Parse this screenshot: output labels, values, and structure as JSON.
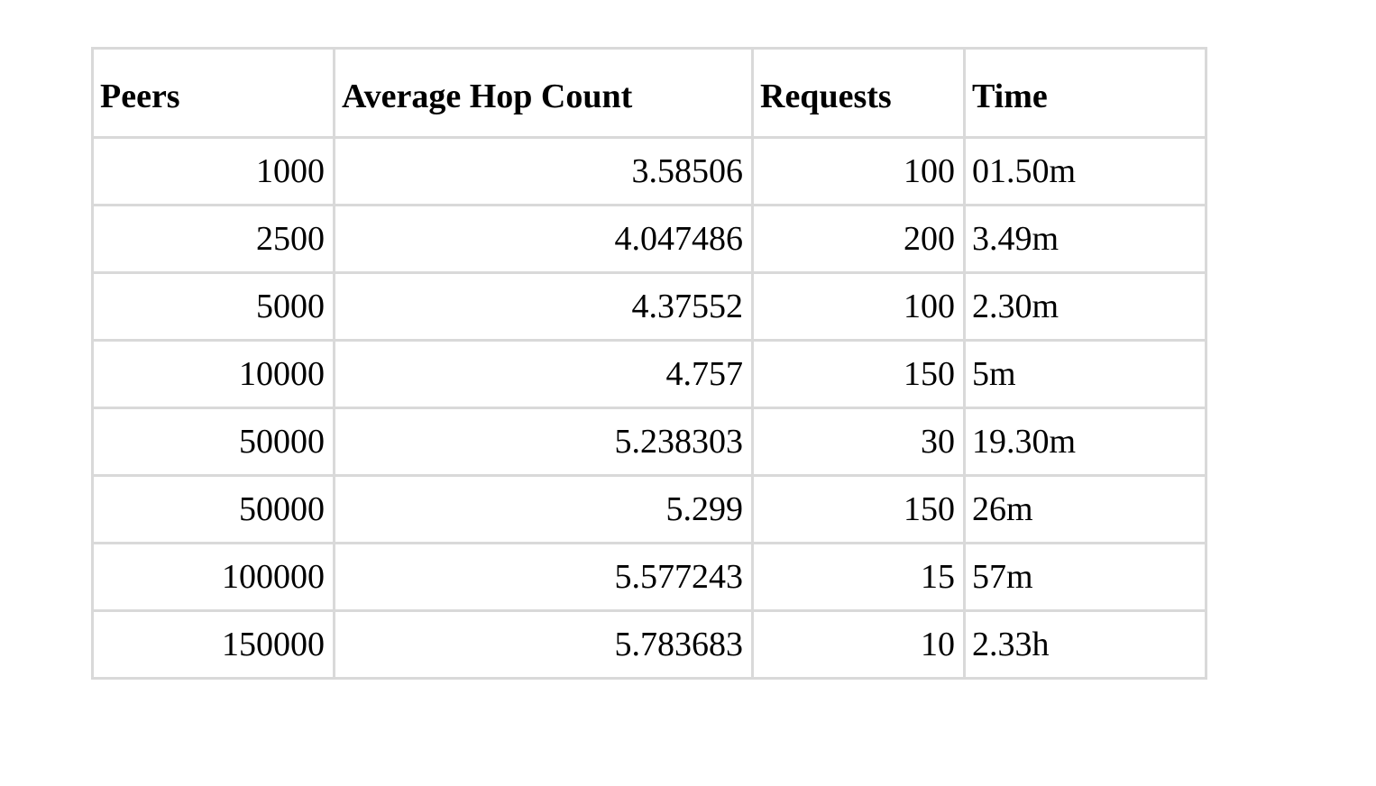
{
  "table": {
    "headers": [
      "Peers",
      "Average Hop Count",
      "Requests",
      "Time"
    ],
    "rows": [
      [
        "1000",
        "3.58506",
        "100",
        "01.50m"
      ],
      [
        "2500",
        "4.047486",
        "200",
        "3.49m"
      ],
      [
        "5000",
        "4.37552",
        "100",
        "2.30m"
      ],
      [
        "10000",
        "4.757",
        "150",
        "5m"
      ],
      [
        "50000",
        "5.238303",
        "30",
        "19.30m"
      ],
      [
        "50000",
        "5.299",
        "150",
        "26m"
      ],
      [
        "100000",
        "5.577243",
        "15",
        "57m"
      ],
      [
        "150000",
        "5.783683",
        "10",
        "2.33h"
      ]
    ]
  }
}
